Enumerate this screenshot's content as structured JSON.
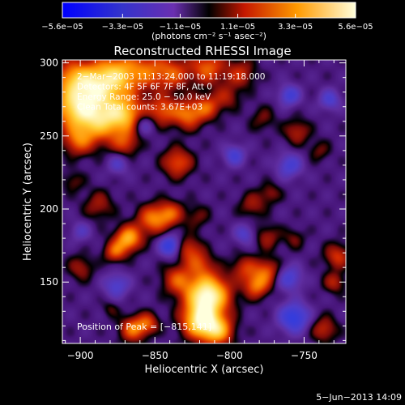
{
  "chart_data": {
    "type": "heatmap",
    "title": "Reconstructed RHESSI Image",
    "xlabel": "Heliocentric X (arcsec)",
    "ylabel": "Heliocentric Y (arcsec)",
    "x_range": [
      -912,
      -722
    ],
    "y_range": [
      108,
      302
    ],
    "x_ticks": [
      -900,
      -850,
      -800,
      -750
    ],
    "x_tick_labels": [
      "−900",
      "−850",
      "−800",
      "−750"
    ],
    "y_ticks": [
      150,
      200,
      250,
      300
    ],
    "y_tick_labels": [
      "150",
      "200",
      "250",
      "300"
    ],
    "colorbar": {
      "range": [
        -5.6e-05,
        5.6e-05
      ],
      "ticks": [
        -5.6e-05,
        -3.3e-05,
        -1.1e-05,
        1.1e-05,
        3.3e-05,
        5.6e-05
      ],
      "tick_labels": [
        "−5.6e−05",
        "−3.3e−05",
        "−1.1e−05",
        "1.1e−05",
        "3.3e−05",
        "5.6e−05"
      ],
      "unit_label": "(photons cm⁻² s⁻¹ asec⁻²)"
    },
    "annotations": [
      "2−Mar−2003 11:13:24.000 to 11:19:18.000",
      "Detectors: 4F 5F 6F 7F 8F, Att 0",
      "Energy Range: 25.0 − 50.0 keV",
      "Clean     Total counts: 3.67E+03"
    ],
    "peak_annotation": "Position of Peak = [−815,141]",
    "peak_position": [
      -815,
      141
    ],
    "timestamp": "5−Jun−2013 14:09",
    "grid": false,
    "blobs": [
      [
        -905,
        290,
        0.7,
        9
      ],
      [
        -890,
        285,
        0.85,
        10
      ],
      [
        -875,
        292,
        0.9,
        10
      ],
      [
        -855,
        295,
        0.55,
        9
      ],
      [
        -838,
        293,
        0.55,
        8
      ],
      [
        -815,
        297,
        0.65,
        8
      ],
      [
        -793,
        293,
        0.45,
        7
      ],
      [
        -905,
        270,
        0.9,
        10
      ],
      [
        -888,
        262,
        1.0,
        11
      ],
      [
        -870,
        265,
        0.85,
        9
      ],
      [
        -845,
        268,
        0.6,
        7
      ],
      [
        -828,
        265,
        0.7,
        7
      ],
      [
        -815,
        270,
        0.55,
        6
      ],
      [
        -902,
        247,
        0.55,
        7
      ],
      [
        -870,
        245,
        0.45,
        6
      ],
      [
        -835,
        232,
        0.6,
        7
      ],
      [
        -802,
        277,
        0.35,
        6
      ],
      [
        -778,
        262,
        0.25,
        6
      ],
      [
        -755,
        253,
        0.4,
        6
      ],
      [
        -740,
        240,
        0.25,
        5
      ],
      [
        -905,
        219,
        0.25,
        5
      ],
      [
        -888,
        203,
        0.35,
        7
      ],
      [
        -852,
        193,
        0.7,
        7
      ],
      [
        -840,
        197,
        0.6,
        6
      ],
      [
        -822,
        195,
        0.25,
        6
      ],
      [
        -785,
        203,
        0.35,
        6
      ],
      [
        -773,
        211,
        0.3,
        5
      ],
      [
        -868,
        180,
        0.95,
        6
      ],
      [
        -877,
        171,
        0.6,
        5
      ],
      [
        -828,
        173,
        0.5,
        6
      ],
      [
        -820,
        163,
        0.45,
        6
      ],
      [
        -775,
        181,
        0.35,
        6
      ],
      [
        -757,
        180,
        0.25,
        5
      ],
      [
        -900,
        160,
        0.35,
        6
      ],
      [
        -835,
        152,
        0.55,
        7
      ],
      [
        -815,
        141,
        1.45,
        10
      ],
      [
        -820,
        123,
        1.15,
        8
      ],
      [
        -808,
        117,
        0.9,
        7
      ],
      [
        -782,
        148,
        0.7,
        6
      ],
      [
        -775,
        158,
        0.55,
        6
      ],
      [
        -790,
        160,
        0.45,
        6
      ],
      [
        -728,
        168,
        0.5,
        6
      ],
      [
        -730,
        150,
        0.4,
        5
      ],
      [
        -737,
        118,
        0.45,
        6
      ],
      [
        -865,
        118,
        0.7,
        6
      ],
      [
        -855,
        122,
        0.55,
        5
      ],
      [
        -880,
        132,
        0.2,
        4
      ],
      [
        -840,
        175,
        -0.75,
        5
      ],
      [
        -757,
        126,
        -0.75,
        7
      ],
      [
        -760,
        278,
        -0.55,
        5
      ],
      [
        -797,
        237,
        -0.5,
        5
      ],
      [
        -760,
        230,
        -0.5,
        6
      ],
      [
        -733,
        275,
        -0.45,
        5
      ],
      [
        -858,
        258,
        -0.45,
        5
      ],
      [
        -760,
        153,
        -0.5,
        6
      ],
      [
        -876,
        148,
        -0.45,
        6
      ],
      [
        -875,
        231,
        -0.35,
        5
      ],
      [
        -790,
        183,
        -0.4,
        5
      ],
      [
        -900,
        185,
        -0.3,
        5
      ]
    ]
  }
}
